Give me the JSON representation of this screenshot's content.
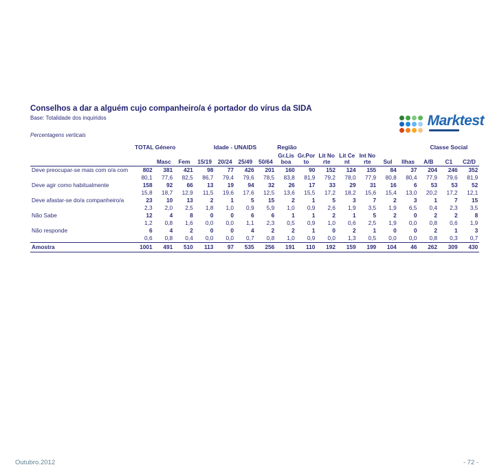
{
  "brand": {
    "name": "Marktest"
  },
  "slide": {
    "title": "Conselhos a dar a alguém cujo companheiro/a é portador do vírus da SIDA",
    "base": "Base: Totalidade dos inquiridos",
    "note": "Percentagens verticais",
    "footer_left": "Outubro.2012",
    "footer_right": "- 72 -"
  },
  "logo_colors": {
    "greens": [
      "#2e7d32",
      "#43a047",
      "#81c784",
      "#5cb85c"
    ],
    "blues": [
      "#1565c0",
      "#1e88e5",
      "#64b5f6",
      "#a7cdf0"
    ],
    "oranges": [
      "#d84315",
      "#f4801f",
      "#f9a825",
      "#f3c48a"
    ]
  },
  "table": {
    "groups": [
      {
        "label": "TOTAL",
        "span": 1,
        "align": "center"
      },
      {
        "label": "Género",
        "span": 2,
        "align": "left"
      },
      {
        "label": "Idade - UNAIDS",
        "span": 4,
        "align": "center"
      },
      {
        "label": "Região",
        "span": 7,
        "align": "left"
      },
      {
        "label": "Classe Social",
        "span": 3,
        "align": "center"
      }
    ],
    "columns": [
      "",
      "Masc",
      "Fem",
      "15/19",
      "20/24",
      "25/49",
      "50/64",
      "Gr.Lisboa",
      "Gr.Porto",
      "Lit Norte",
      "Lit Cent",
      "Int Norte",
      "Sul",
      "Ilhas",
      "A/B",
      "C1",
      "C2/D"
    ],
    "rows": [
      {
        "label": "Deve preocupar-se mais com o/a com",
        "counts": [
          802,
          381,
          421,
          98,
          77,
          426,
          201,
          160,
          90,
          152,
          124,
          155,
          84,
          37,
          204,
          246,
          352
        ],
        "pcts": [
          "80,1",
          "77,6",
          "82,5",
          "86,7",
          "79,4",
          "79,6",
          "78,5",
          "83,8",
          "81,9",
          "79,2",
          "78,0",
          "77,9",
          "80,8",
          "80,4",
          "77,9",
          "79,6",
          "81,9"
        ]
      },
      {
        "label": "Deve agir como habitualmente",
        "counts": [
          158,
          92,
          66,
          13,
          19,
          94,
          32,
          26,
          17,
          33,
          29,
          31,
          16,
          6,
          53,
          53,
          52
        ],
        "pcts": [
          "15,8",
          "18,7",
          "12,9",
          "11,5",
          "19,6",
          "17,6",
          "12,5",
          "13,6",
          "15,5",
          "17,2",
          "18,2",
          "15,6",
          "15,4",
          "13,0",
          "20,2",
          "17,2",
          "12,1"
        ]
      },
      {
        "label": "Deve afastar-se do/a companheiro/a",
        "counts": [
          23,
          10,
          13,
          2,
          1,
          5,
          15,
          2,
          1,
          5,
          3,
          7,
          2,
          3,
          1,
          7,
          15
        ],
        "pcts": [
          "2,3",
          "2,0",
          "2,5",
          "1,8",
          "1,0",
          "0,9",
          "5,9",
          "1,0",
          "0,9",
          "2,6",
          "1,9",
          "3,5",
          "1,9",
          "6,5",
          "0,4",
          "2,3",
          "3,5"
        ]
      },
      {
        "label": "Não Sabe",
        "counts": [
          12,
          4,
          8,
          0,
          0,
          6,
          6,
          1,
          1,
          2,
          1,
          5,
          2,
          0,
          2,
          2,
          8
        ],
        "pcts": [
          "1,2",
          "0,8",
          "1,6",
          "0,0",
          "0,0",
          "1,1",
          "2,3",
          "0,5",
          "0,9",
          "1,0",
          "0,6",
          "2,5",
          "1,9",
          "0,0",
          "0,8",
          "0,6",
          "1,9"
        ]
      },
      {
        "label": "Não responde",
        "counts": [
          6,
          4,
          2,
          0,
          0,
          4,
          2,
          2,
          1,
          0,
          2,
          1,
          0,
          0,
          2,
          1,
          3
        ],
        "pcts": [
          "0,6",
          "0,8",
          "0,4",
          "0,0",
          "0,0",
          "0,7",
          "0,8",
          "1,0",
          "0,9",
          "0,0",
          "1,3",
          "0,5",
          "0,0",
          "0,0",
          "0,8",
          "0,3",
          "0,7"
        ]
      }
    ],
    "sample_row": {
      "label": "Amostra",
      "values": [
        1001,
        491,
        510,
        113,
        97,
        535,
        256,
        191,
        110,
        192,
        159,
        199,
        104,
        46,
        262,
        309,
        430
      ]
    }
  }
}
